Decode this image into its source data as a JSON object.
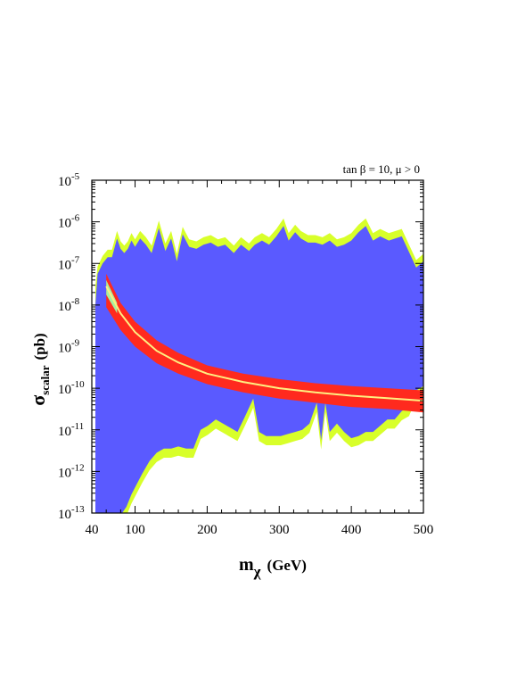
{
  "chart_data": {
    "type": "area",
    "annotation": "tan β = 10, μ > 0",
    "xlabel": {
      "main": "m",
      "sub": "χ",
      "unit": "(GeV)"
    },
    "ylabel": {
      "main": "σ",
      "sub": "scalar",
      "unit": "(pb)"
    },
    "xlim": [
      40,
      500
    ],
    "ylim_log10": [
      -13,
      -5
    ],
    "y_scale": "log",
    "x_ticks": [
      {
        "value": 40,
        "label": "40"
      },
      {
        "value": 100,
        "label": "100"
      },
      {
        "value": 200,
        "label": "200"
      },
      {
        "value": 300,
        "label": "300"
      },
      {
        "value": 400,
        "label": "400"
      },
      {
        "value": 500,
        "label": "500"
      }
    ],
    "y_ticks": [
      {
        "exp": -13,
        "base": "10",
        "sup": "-13"
      },
      {
        "exp": -12,
        "base": "10",
        "sup": "-12"
      },
      {
        "exp": -11,
        "base": "10",
        "sup": "-11"
      },
      {
        "exp": -10,
        "base": "10",
        "sup": "-10"
      },
      {
        "exp": -9,
        "base": "10",
        "sup": "-9"
      },
      {
        "exp": -8,
        "base": "10",
        "sup": "-8"
      },
      {
        "exp": -7,
        "base": "10",
        "sup": "-7"
      },
      {
        "exp": -6,
        "base": "10",
        "sup": "-6"
      },
      {
        "exp": -5,
        "base": "10",
        "sup": "-5"
      }
    ],
    "colors": {
      "blue_region": "#5a5aff",
      "yellow_fringe": "#d8ff2a",
      "red_band": "#ff2a1e",
      "green_band": "#a8f0a0",
      "center_line": "#fff080"
    },
    "blue_region": {
      "upper_log10": [
        [
          48,
          -7.25
        ],
        [
          55,
          -7.0
        ],
        [
          62,
          -6.85
        ],
        [
          68,
          -6.85
        ],
        [
          75,
          -6.4
        ],
        [
          80,
          -6.65
        ],
        [
          85,
          -6.75
        ],
        [
          90,
          -6.65
        ],
        [
          95,
          -6.45
        ],
        [
          100,
          -6.6
        ],
        [
          107,
          -6.4
        ],
        [
          115,
          -6.55
        ],
        [
          123,
          -6.75
        ],
        [
          133,
          -6.15
        ],
        [
          142,
          -6.7
        ],
        [
          150,
          -6.4
        ],
        [
          158,
          -6.95
        ],
        [
          166,
          -6.3
        ],
        [
          175,
          -6.6
        ],
        [
          185,
          -6.65
        ],
        [
          195,
          -6.55
        ],
        [
          205,
          -6.5
        ],
        [
          215,
          -6.6
        ],
        [
          225,
          -6.55
        ],
        [
          237,
          -6.75
        ],
        [
          247,
          -6.55
        ],
        [
          258,
          -6.7
        ],
        [
          266,
          -6.55
        ],
        [
          276,
          -6.45
        ],
        [
          286,
          -6.55
        ],
        [
          296,
          -6.35
        ],
        [
          306,
          -6.1
        ],
        [
          313,
          -6.45
        ],
        [
          322,
          -6.25
        ],
        [
          330,
          -6.4
        ],
        [
          340,
          -6.5
        ],
        [
          350,
          -6.5
        ],
        [
          360,
          -6.55
        ],
        [
          370,
          -6.45
        ],
        [
          380,
          -6.6
        ],
        [
          390,
          -6.55
        ],
        [
          400,
          -6.45
        ],
        [
          410,
          -6.25
        ],
        [
          420,
          -6.1
        ],
        [
          430,
          -6.45
        ],
        [
          440,
          -6.35
        ],
        [
          452,
          -6.45
        ],
        [
          470,
          -6.35
        ],
        [
          490,
          -7.1
        ],
        [
          500,
          -6.95
        ]
      ],
      "lower_log10": [
        [
          48,
          -13
        ],
        [
          55,
          -13
        ],
        [
          62,
          -13
        ],
        [
          68,
          -13
        ],
        [
          75,
          -13
        ],
        [
          82,
          -13
        ],
        [
          88,
          -12.85
        ],
        [
          95,
          -12.55
        ],
        [
          101,
          -12.35
        ],
        [
          110,
          -12.05
        ],
        [
          120,
          -11.75
        ],
        [
          130,
          -11.55
        ],
        [
          140,
          -11.45
        ],
        [
          150,
          -11.45
        ],
        [
          160,
          -11.4
        ],
        [
          171,
          -11.45
        ],
        [
          181,
          -11.45
        ],
        [
          191,
          -11.0
        ],
        [
          201,
          -10.9
        ],
        [
          212,
          -10.75
        ],
        [
          222,
          -10.85
        ],
        [
          232,
          -10.95
        ],
        [
          242,
          -11.05
        ],
        [
          252,
          -10.7
        ],
        [
          264,
          -10.25
        ],
        [
          272,
          -11.05
        ],
        [
          282,
          -11.15
        ],
        [
          292,
          -11.15
        ],
        [
          302,
          -11.15
        ],
        [
          312,
          -11.1
        ],
        [
          322,
          -11.05
        ],
        [
          332,
          -11.0
        ],
        [
          342,
          -10.85
        ],
        [
          352,
          -10.35
        ],
        [
          358,
          -11.25
        ],
        [
          364,
          -10.35
        ],
        [
          370,
          -11.05
        ],
        [
          380,
          -10.85
        ],
        [
          390,
          -11.05
        ],
        [
          400,
          -11.2
        ],
        [
          410,
          -11.15
        ],
        [
          420,
          -11.05
        ],
        [
          430,
          -11.05
        ],
        [
          440,
          -10.9
        ],
        [
          450,
          -10.75
        ],
        [
          460,
          -10.75
        ],
        [
          470,
          -10.55
        ],
        [
          480,
          -10.45
        ],
        [
          490,
          -10.05
        ],
        [
          500,
          -9.95
        ]
      ]
    },
    "red_band": {
      "upper_log10": [
        [
          60,
          -7.25
        ],
        [
          80,
          -7.95
        ],
        [
          100,
          -8.4
        ],
        [
          130,
          -8.85
        ],
        [
          160,
          -9.15
        ],
        [
          200,
          -9.45
        ],
        [
          250,
          -9.65
        ],
        [
          300,
          -9.78
        ],
        [
          350,
          -9.88
        ],
        [
          400,
          -9.95
        ],
        [
          450,
          -10.0
        ],
        [
          500,
          -10.05
        ]
      ],
      "lower_log10": [
        [
          60,
          -8.05
        ],
        [
          80,
          -8.6
        ],
        [
          100,
          -9.0
        ],
        [
          130,
          -9.4
        ],
        [
          160,
          -9.65
        ],
        [
          200,
          -9.9
        ],
        [
          250,
          -10.1
        ],
        [
          300,
          -10.25
        ],
        [
          350,
          -10.35
        ],
        [
          400,
          -10.45
        ],
        [
          450,
          -10.5
        ],
        [
          500,
          -10.58
        ]
      ]
    },
    "green_band": {
      "upper_log10": [
        [
          60,
          -7.4
        ],
        [
          75,
          -7.95
        ]
      ],
      "lower_log10": [
        [
          60,
          -7.75
        ],
        [
          75,
          -8.2
        ]
      ]
    },
    "center_line_log10": [
      [
        60,
        -7.55
      ],
      [
        80,
        -8.2
      ],
      [
        100,
        -8.65
      ],
      [
        130,
        -9.1
      ],
      [
        160,
        -9.38
      ],
      [
        200,
        -9.65
      ],
      [
        250,
        -9.85
      ],
      [
        300,
        -10.0
      ],
      [
        350,
        -10.1
      ],
      [
        400,
        -10.18
      ],
      [
        450,
        -10.24
      ],
      [
        500,
        -10.3
      ]
    ]
  }
}
